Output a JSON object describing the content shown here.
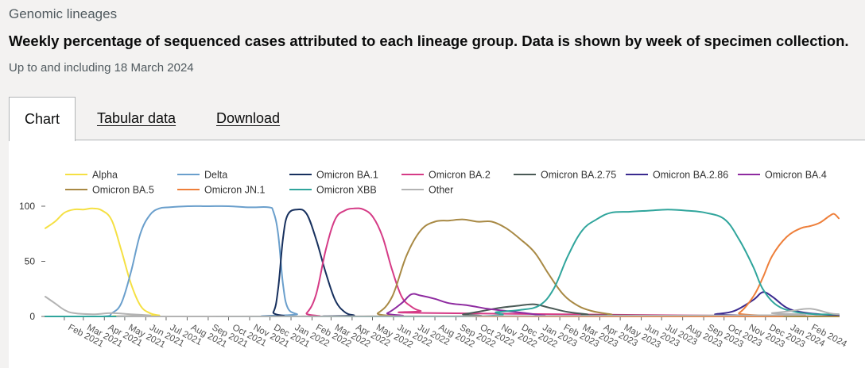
{
  "header": {
    "section_title": "Genomic lineages",
    "main_title": "Weekly percentage of sequenced cases attributed to each lineage group. Data is shown by week of specimen collection.",
    "caption": "Up to and including 18 March 2024"
  },
  "tabs": [
    {
      "label": "Chart",
      "active": true
    },
    {
      "label": "Tabular data",
      "active": false
    },
    {
      "label": "Download",
      "active": false
    }
  ],
  "chart_data": {
    "type": "line",
    "title": "",
    "xlabel": "",
    "ylabel": "",
    "x_ticks": [
      "Feb 2021",
      "Mar 2021",
      "Apr 2021",
      "May 2021",
      "Jun 2021",
      "Jul 2021",
      "Aug 2021",
      "Sep 2021",
      "Oct 2021",
      "Nov 2021",
      "Dec 2021",
      "Jan 2022",
      "Feb 2022",
      "Mar 2022",
      "Apr 2022",
      "May 2022",
      "Jun 2022",
      "Jul 2022",
      "Aug 2022",
      "Sep 2022",
      "Oct 2022",
      "Nov 2022",
      "Dec 2022",
      "Jan 2023",
      "Feb 2023",
      "Mar 2023",
      "Apr 2023",
      "May 2023",
      "Jun 2023",
      "Jul 2023",
      "Aug 2023",
      "Sep 2023",
      "Oct 2023",
      "Nov 2023",
      "Dec 2023",
      "Jan 2024",
      "Feb 2024"
    ],
    "x_range": [
      "2021-01-04",
      "2024-03-18"
    ],
    "y_ticks": [
      0,
      50,
      100
    ],
    "ylim": [
      0,
      100
    ],
    "grid": false,
    "legend_position": "top",
    "series": [
      {
        "name": "Alpha",
        "color": "#f5e043",
        "points": [
          [
            "2021-01-04",
            80
          ],
          [
            "2021-01-18",
            86
          ],
          [
            "2021-02-01",
            94
          ],
          [
            "2021-02-15",
            97
          ],
          [
            "2021-03-01",
            97
          ],
          [
            "2021-03-15",
            98
          ],
          [
            "2021-03-29",
            96
          ],
          [
            "2021-04-12",
            87
          ],
          [
            "2021-04-26",
            60
          ],
          [
            "2021-05-10",
            30
          ],
          [
            "2021-05-24",
            10
          ],
          [
            "2021-06-07",
            3
          ],
          [
            "2021-06-21",
            1
          ],
          [
            "2021-07-05",
            0
          ],
          [
            "2024-03-18",
            0
          ]
        ]
      },
      {
        "name": "Delta",
        "color": "#6a9fcc",
        "points": [
          [
            "2021-01-04",
            0
          ],
          [
            "2021-03-29",
            0
          ],
          [
            "2021-04-12",
            3
          ],
          [
            "2021-04-26",
            12
          ],
          [
            "2021-05-10",
            40
          ],
          [
            "2021-05-24",
            75
          ],
          [
            "2021-06-07",
            92
          ],
          [
            "2021-06-21",
            98
          ],
          [
            "2021-07-05",
            99
          ],
          [
            "2021-08-02",
            100
          ],
          [
            "2021-09-01",
            100
          ],
          [
            "2021-10-01",
            100
          ],
          [
            "2021-11-01",
            99
          ],
          [
            "2021-11-29",
            99
          ],
          [
            "2021-12-06",
            95
          ],
          [
            "2021-12-13",
            75
          ],
          [
            "2021-12-20",
            30
          ],
          [
            "2021-12-27",
            8
          ],
          [
            "2022-01-10",
            2
          ],
          [
            "2022-01-24",
            0
          ],
          [
            "2024-03-18",
            0
          ]
        ]
      },
      {
        "name": "Omicron BA.1",
        "color": "#17305e",
        "points": [
          [
            "2021-01-04",
            0
          ],
          [
            "2021-11-22",
            0
          ],
          [
            "2021-12-06",
            4
          ],
          [
            "2021-12-13",
            25
          ],
          [
            "2021-12-20",
            70
          ],
          [
            "2021-12-27",
            92
          ],
          [
            "2022-01-10",
            97
          ],
          [
            "2022-01-24",
            93
          ],
          [
            "2022-02-07",
            70
          ],
          [
            "2022-02-21",
            40
          ],
          [
            "2022-03-07",
            15
          ],
          [
            "2022-03-21",
            4
          ],
          [
            "2022-04-04",
            1
          ],
          [
            "2022-04-18",
            0
          ],
          [
            "2024-03-18",
            0
          ]
        ]
      },
      {
        "name": "Omicron BA.2",
        "color": "#d53b86",
        "points": [
          [
            "2021-01-04",
            0
          ],
          [
            "2022-01-10",
            0
          ],
          [
            "2022-01-24",
            3
          ],
          [
            "2022-02-07",
            20
          ],
          [
            "2022-02-21",
            60
          ],
          [
            "2022-03-07",
            88
          ],
          [
            "2022-03-21",
            96
          ],
          [
            "2022-04-04",
            98
          ],
          [
            "2022-04-18",
            97
          ],
          [
            "2022-05-02",
            90
          ],
          [
            "2022-05-16",
            72
          ],
          [
            "2022-05-30",
            42
          ],
          [
            "2022-06-13",
            18
          ],
          [
            "2022-06-27",
            9
          ],
          [
            "2022-07-11",
            5
          ],
          [
            "2022-08-01",
            3
          ],
          [
            "2024-03-18",
            0
          ]
        ]
      },
      {
        "name": "Omicron BA.2.75",
        "color": "#4a5a56",
        "points": [
          [
            "2021-01-04",
            0
          ],
          [
            "2022-08-15",
            0
          ],
          [
            "2022-09-12",
            2
          ],
          [
            "2022-10-10",
            5
          ],
          [
            "2022-11-07",
            8
          ],
          [
            "2022-12-05",
            10
          ],
          [
            "2022-12-26",
            11
          ],
          [
            "2023-01-16",
            8
          ],
          [
            "2023-02-13",
            4
          ],
          [
            "2023-03-13",
            2
          ],
          [
            "2023-04-10",
            1
          ],
          [
            "2024-03-18",
            0
          ]
        ]
      },
      {
        "name": "Omicron BA.2.86",
        "color": "#3a2a8f",
        "points": [
          [
            "2021-01-04",
            0
          ],
          [
            "2023-08-21",
            0
          ],
          [
            "2023-09-18",
            2
          ],
          [
            "2023-10-16",
            5
          ],
          [
            "2023-11-13",
            15
          ],
          [
            "2023-11-27",
            22
          ],
          [
            "2023-12-11",
            18
          ],
          [
            "2024-01-01",
            8
          ],
          [
            "2024-01-22",
            4
          ],
          [
            "2024-02-19",
            2
          ],
          [
            "2024-03-18",
            1
          ]
        ]
      },
      {
        "name": "Omicron BA.4",
        "color": "#8e2aa0",
        "points": [
          [
            "2021-01-04",
            0
          ],
          [
            "2022-05-02",
            0
          ],
          [
            "2022-05-23",
            3
          ],
          [
            "2022-06-13",
            12
          ],
          [
            "2022-06-27",
            20
          ],
          [
            "2022-07-11",
            19
          ],
          [
            "2022-08-01",
            16
          ],
          [
            "2022-08-22",
            12
          ],
          [
            "2022-09-19",
            10
          ],
          [
            "2022-10-17",
            7
          ],
          [
            "2022-11-14",
            5
          ],
          [
            "2022-12-12",
            3
          ],
          [
            "2023-01-09",
            1
          ],
          [
            "2023-02-06",
            0
          ],
          [
            "2024-03-18",
            0
          ]
        ]
      },
      {
        "name": "Omicron BA.5",
        "color": "#a88944",
        "points": [
          [
            "2021-01-04",
            0
          ],
          [
            "2022-04-18",
            0
          ],
          [
            "2022-05-09",
            3
          ],
          [
            "2022-05-30",
            18
          ],
          [
            "2022-06-20",
            55
          ],
          [
            "2022-07-11",
            78
          ],
          [
            "2022-08-01",
            86
          ],
          [
            "2022-08-22",
            87
          ],
          [
            "2022-09-12",
            88
          ],
          [
            "2022-10-03",
            86
          ],
          [
            "2022-10-24",
            86
          ],
          [
            "2022-11-14",
            80
          ],
          [
            "2022-12-05",
            70
          ],
          [
            "2022-12-26",
            58
          ],
          [
            "2023-01-16",
            38
          ],
          [
            "2023-02-06",
            20
          ],
          [
            "2023-02-27",
            10
          ],
          [
            "2023-03-20",
            5
          ],
          [
            "2023-04-17",
            2
          ],
          [
            "2023-05-15",
            0
          ],
          [
            "2024-03-18",
            0
          ]
        ]
      },
      {
        "name": "Omicron JN.1",
        "color": "#ee7f3a",
        "points": [
          [
            "2021-01-04",
            0
          ],
          [
            "2023-10-02",
            0
          ],
          [
            "2023-10-23",
            3
          ],
          [
            "2023-11-13",
            18
          ],
          [
            "2023-11-27",
            35
          ],
          [
            "2023-12-11",
            55
          ],
          [
            "2024-01-01",
            72
          ],
          [
            "2024-01-22",
            80
          ],
          [
            "2024-02-05",
            82
          ],
          [
            "2024-02-19",
            85
          ],
          [
            "2024-03-04",
            91
          ],
          [
            "2024-03-11",
            93
          ],
          [
            "2024-03-18",
            89
          ]
        ]
      },
      {
        "name": "Omicron XBB",
        "color": "#30a59c",
        "points": [
          [
            "2021-01-04",
            0
          ],
          [
            "2022-09-01",
            0
          ],
          [
            "2022-11-01",
            4
          ],
          [
            "2022-12-05",
            6
          ],
          [
            "2023-01-02",
            10
          ],
          [
            "2023-01-23",
            25
          ],
          [
            "2023-02-13",
            55
          ],
          [
            "2023-03-06",
            78
          ],
          [
            "2023-03-27",
            88
          ],
          [
            "2023-04-17",
            94
          ],
          [
            "2023-05-15",
            95
          ],
          [
            "2023-06-12",
            96
          ],
          [
            "2023-07-10",
            97
          ],
          [
            "2023-08-07",
            96
          ],
          [
            "2023-09-04",
            94
          ],
          [
            "2023-10-02",
            88
          ],
          [
            "2023-10-23",
            70
          ],
          [
            "2023-11-13",
            45
          ],
          [
            "2023-11-27",
            25
          ],
          [
            "2023-12-18",
            10
          ],
          [
            "2024-01-15",
            4
          ],
          [
            "2024-02-12",
            2
          ],
          [
            "2024-03-18",
            2
          ]
        ]
      },
      {
        "name": "Other",
        "color": "#b3b3b3",
        "points": [
          [
            "2021-01-04",
            18
          ],
          [
            "2021-01-18",
            12
          ],
          [
            "2021-02-01",
            6
          ],
          [
            "2021-02-15",
            3
          ],
          [
            "2021-03-15",
            2
          ],
          [
            "2021-04-12",
            3
          ],
          [
            "2021-05-10",
            2
          ],
          [
            "2021-06-07",
            1
          ],
          [
            "2021-07-05",
            0
          ],
          [
            "2023-11-13",
            1
          ],
          [
            "2023-12-11",
            3
          ],
          [
            "2024-01-08",
            5
          ],
          [
            "2024-02-05",
            7
          ],
          [
            "2024-03-04",
            3
          ],
          [
            "2024-03-18",
            2
          ]
        ]
      }
    ]
  }
}
